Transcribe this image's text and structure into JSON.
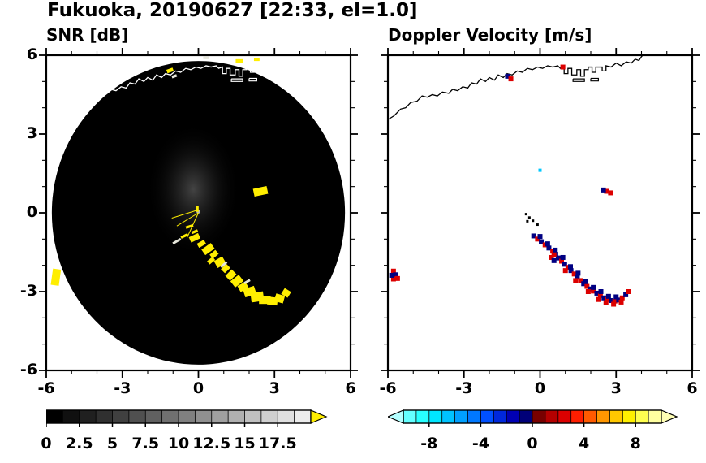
{
  "title": "Fukuoka, 20190627 [22:33, el=1.0]",
  "colors": {
    "snr_high": "#ffee00",
    "snr_dash": "#e6e6da",
    "vel_pos": "#dc0000",
    "vel_neg": "#000082",
    "vel_cyan": "#00c8ff",
    "speck_black": "#000000",
    "coast_left": "#ffffff",
    "coast_right": "#000000",
    "disk": "#000000",
    "frame": "#000000"
  },
  "chart_data": [
    {
      "type": "heatmap",
      "title": "SNR [dB]",
      "xlabel": "",
      "ylabel": "",
      "xlim": [
        -6,
        6
      ],
      "ylim": [
        -6,
        6
      ],
      "xticks": [
        -6,
        -3,
        0,
        3,
        6
      ],
      "yticks": [
        6,
        3,
        0,
        -3,
        -6
      ],
      "minor_tick_step": 1,
      "radar_disk": {
        "center": [
          0,
          0
        ],
        "radius": 5.78
      },
      "colorbar": {
        "min": 0,
        "max": 20,
        "values": [
          0,
          2.5,
          5,
          7.5,
          10,
          12.5,
          15,
          17.5
        ],
        "labels": [
          "0",
          "2.5",
          "5",
          "7.5",
          "10",
          "12.5",
          "15",
          "17.5"
        ],
        "segment_colors": [
          "#000000",
          "#101010",
          "#202020",
          "#303030",
          "#404040",
          "#505050",
          "#606060",
          "#707070",
          "#808080",
          "#909090",
          "#a0a0a0",
          "#b0b0b0",
          "#c0c0c0",
          "#d0d0d0",
          "#e0e0e0",
          "#ececec"
        ],
        "overflow_color": "#ffee00"
      },
      "echo_blobs": [
        [
          -0.15,
          -0.95,
          0.4,
          0.22,
          -25
        ],
        [
          0.12,
          -1.18,
          0.32,
          0.18,
          -30
        ],
        [
          0.38,
          -1.38,
          0.45,
          0.26,
          -35
        ],
        [
          0.62,
          -1.58,
          0.3,
          0.2,
          -40
        ],
        [
          0.5,
          -1.82,
          0.28,
          0.16,
          -40
        ],
        [
          0.85,
          -1.88,
          0.38,
          0.3,
          -30
        ],
        [
          1.07,
          -2.12,
          0.3,
          0.22,
          -45
        ],
        [
          1.28,
          -2.37,
          0.36,
          0.26,
          -45
        ],
        [
          1.52,
          -2.6,
          0.42,
          0.3,
          -38
        ],
        [
          1.76,
          -2.82,
          0.36,
          0.26,
          -28
        ],
        [
          2.02,
          -3.0,
          0.46,
          0.32,
          -18
        ],
        [
          2.32,
          -3.2,
          0.5,
          0.36,
          -8
        ],
        [
          2.62,
          -3.32,
          0.46,
          0.3,
          0
        ],
        [
          2.92,
          -3.36,
          0.4,
          0.3,
          6
        ],
        [
          3.2,
          -3.26,
          0.36,
          0.3,
          16
        ],
        [
          3.46,
          -3.05,
          0.3,
          0.26,
          32
        ],
        [
          2.45,
          0.82,
          0.55,
          0.3,
          -12
        ],
        [
          -5.62,
          -2.45,
          0.32,
          0.62,
          8
        ],
        [
          -0.35,
          -0.52,
          0.3,
          0.1,
          -18
        ],
        [
          -0.15,
          -0.72,
          0.26,
          0.1,
          -22
        ],
        [
          -0.55,
          -0.88,
          0.3,
          0.1,
          -25
        ],
        [
          -0.05,
          0.15,
          0.12,
          0.22,
          0
        ],
        [
          -1.12,
          5.42,
          0.26,
          0.14,
          -20
        ],
        [
          1.62,
          5.78,
          0.3,
          0.14,
          0
        ],
        [
          2.3,
          5.84,
          0.22,
          0.12,
          0
        ]
      ],
      "white_dashes": [
        [
          -0.85,
          -1.08,
          0.36,
          0.09,
          -30
        ],
        [
          1.0,
          -1.97,
          0.3,
          0.09,
          -40
        ],
        [
          1.92,
          -2.62,
          0.26,
          0.09,
          -30
        ],
        [
          0.3,
          5.9,
          0.22,
          0.1,
          0
        ],
        [
          -0.95,
          5.2,
          0.2,
          0.1,
          -20
        ]
      ],
      "center_rays": [
        [
          0,
          0,
          -0.85,
          -0.5
        ],
        [
          0,
          0,
          -0.45,
          -0.95
        ],
        [
          -0.05,
          0.1,
          -1.05,
          -0.2
        ]
      ]
    },
    {
      "type": "scatter",
      "title": "Doppler Velocity [m/s]",
      "xlabel": "",
      "ylabel": "",
      "xlim": [
        -6,
        6
      ],
      "ylim": [
        -6,
        6
      ],
      "xticks": [
        -6,
        -3,
        0,
        3,
        6
      ],
      "yticks": [
        6,
        3,
        0,
        -3,
        -6
      ],
      "minor_tick_step": 1,
      "colorbar": {
        "min": -10,
        "max": 10,
        "values": [
          -8,
          -4,
          0,
          4,
          8
        ],
        "labels": [
          "-8",
          "-4",
          "0",
          "4",
          "8"
        ],
        "segment_colors": [
          "#64ffff",
          "#28ffff",
          "#00e6ff",
          "#00c3ff",
          "#00a0ff",
          "#0078ff",
          "#0050ff",
          "#0028dc",
          "#0000b4",
          "#000078",
          "#780000",
          "#b40000",
          "#dc0000",
          "#ff1e00",
          "#ff5a00",
          "#ff9600",
          "#ffc800",
          "#fff000",
          "#ffff50",
          "#ffffa0"
        ],
        "underflow_color": "#b4ffff",
        "overflow_color": "#ffffb4"
      },
      "points": [
        [
          -0.25,
          -0.88,
          "n"
        ],
        [
          -0.1,
          -1.0,
          "r"
        ],
        [
          0.05,
          -1.1,
          "n"
        ],
        [
          0.2,
          -1.22,
          "r"
        ],
        [
          0.35,
          -1.34,
          "n"
        ],
        [
          0.5,
          -1.46,
          "r"
        ],
        [
          0.62,
          -1.58,
          "n"
        ],
        [
          0.45,
          -1.7,
          "r"
        ],
        [
          0.55,
          -1.82,
          "n"
        ],
        [
          0.72,
          -1.72,
          "n"
        ],
        [
          0.85,
          -1.84,
          "r"
        ],
        [
          0.97,
          -1.96,
          "n"
        ],
        [
          1.1,
          -2.08,
          "r"
        ],
        [
          1.22,
          -2.2,
          "n"
        ],
        [
          1.35,
          -2.33,
          "r"
        ],
        [
          1.47,
          -2.45,
          "n"
        ],
        [
          1.6,
          -2.58,
          "r"
        ],
        [
          1.72,
          -2.7,
          "n"
        ],
        [
          1.85,
          -2.8,
          "r"
        ],
        [
          1.98,
          -2.9,
          "n"
        ],
        [
          2.1,
          -2.98,
          "r"
        ],
        [
          2.24,
          -3.06,
          "n"
        ],
        [
          2.38,
          -3.15,
          "r"
        ],
        [
          2.52,
          -3.24,
          "n"
        ],
        [
          2.66,
          -3.3,
          "r"
        ],
        [
          2.8,
          -3.34,
          "n"
        ],
        [
          2.95,
          -3.36,
          "r"
        ],
        [
          3.1,
          -3.32,
          "n"
        ],
        [
          3.24,
          -3.24,
          "r"
        ],
        [
          3.38,
          -3.12,
          "n"
        ],
        [
          3.48,
          -3.0,
          "r"
        ],
        [
          0.0,
          -0.9,
          "n"
        ],
        [
          0.3,
          -1.18,
          "n"
        ],
        [
          0.6,
          -1.42,
          "n"
        ],
        [
          0.9,
          -1.7,
          "n"
        ],
        [
          1.2,
          -2.05,
          "n"
        ],
        [
          1.5,
          -2.3,
          "n"
        ],
        [
          1.8,
          -2.62,
          "n"
        ],
        [
          2.1,
          -2.84,
          "n"
        ],
        [
          2.4,
          -3.0,
          "n"
        ],
        [
          2.7,
          -3.18,
          "n"
        ],
        [
          3.0,
          -3.2,
          "n"
        ],
        [
          0.55,
          -1.6,
          "r"
        ],
        [
          1.0,
          -2.2,
          "r"
        ],
        [
          1.4,
          -2.58,
          "r"
        ],
        [
          1.9,
          -3.0,
          "r"
        ],
        [
          2.3,
          -3.3,
          "r"
        ],
        [
          2.6,
          -3.42,
          "r"
        ],
        [
          2.9,
          -3.48,
          "r"
        ],
        [
          3.2,
          -3.4,
          "r"
        ],
        [
          2.62,
          0.82,
          "r"
        ],
        [
          2.78,
          0.76,
          "r"
        ],
        [
          2.5,
          0.87,
          "n"
        ],
        [
          -5.78,
          -2.22,
          "r"
        ],
        [
          -5.7,
          -2.36,
          "n"
        ],
        [
          -5.62,
          -2.5,
          "r"
        ],
        [
          -5.78,
          -2.52,
          "r"
        ],
        [
          -5.85,
          -2.38,
          "n"
        ],
        [
          -1.28,
          5.2,
          "n"
        ],
        [
          -1.15,
          5.1,
          "r"
        ],
        [
          0.9,
          5.55,
          "r"
        ],
        [
          -0.55,
          -0.05,
          "k"
        ],
        [
          -0.42,
          -0.18,
          "k"
        ],
        [
          -0.28,
          -0.3,
          "k"
        ],
        [
          -0.5,
          -0.32,
          "k"
        ],
        [
          -0.1,
          -0.45,
          "k"
        ],
        [
          0.0,
          1.62,
          "c"
        ]
      ]
    }
  ],
  "coastline": {
    "main": [
      [
        -6.0,
        3.55
      ],
      [
        -5.75,
        3.7
      ],
      [
        -5.5,
        3.95
      ],
      [
        -5.3,
        4.0
      ],
      [
        -5.1,
        4.2
      ],
      [
        -4.85,
        4.25
      ],
      [
        -4.65,
        4.45
      ],
      [
        -4.45,
        4.4
      ],
      [
        -4.25,
        4.5
      ],
      [
        -4.05,
        4.45
      ],
      [
        -3.85,
        4.6
      ],
      [
        -3.6,
        4.55
      ],
      [
        -3.45,
        4.7
      ],
      [
        -3.25,
        4.65
      ],
      [
        -3.05,
        4.8
      ],
      [
        -2.85,
        4.75
      ],
      [
        -2.7,
        4.95
      ],
      [
        -2.5,
        4.9
      ],
      [
        -2.35,
        5.1
      ],
      [
        -2.15,
        5.0
      ],
      [
        -2.0,
        5.15
      ],
      [
        -1.8,
        5.05
      ],
      [
        -1.65,
        5.25
      ],
      [
        -1.45,
        5.15
      ],
      [
        -1.3,
        5.3
      ],
      [
        -1.1,
        5.25
      ],
      [
        -0.9,
        5.4
      ],
      [
        -0.7,
        5.35
      ],
      [
        -0.5,
        5.5
      ],
      [
        -0.3,
        5.45
      ],
      [
        -0.1,
        5.55
      ],
      [
        0.1,
        5.5
      ],
      [
        0.3,
        5.6
      ],
      [
        0.5,
        5.55
      ],
      [
        0.7,
        5.6
      ],
      [
        0.8,
        5.5
      ],
      [
        0.95,
        5.55
      ],
      [
        0.95,
        5.3
      ],
      [
        1.1,
        5.3
      ],
      [
        1.1,
        5.5
      ],
      [
        1.25,
        5.5
      ],
      [
        1.25,
        5.25
      ],
      [
        1.45,
        5.25
      ],
      [
        1.45,
        5.45
      ],
      [
        1.6,
        5.45
      ],
      [
        1.6,
        5.2
      ],
      [
        1.75,
        5.2
      ],
      [
        1.75,
        5.45
      ],
      [
        1.9,
        5.45
      ],
      [
        1.9,
        5.55
      ],
      [
        2.05,
        5.55
      ],
      [
        2.05,
        5.35
      ],
      [
        2.2,
        5.35
      ],
      [
        2.2,
        5.55
      ],
      [
        2.45,
        5.55
      ],
      [
        2.45,
        5.4
      ],
      [
        2.6,
        5.4
      ],
      [
        2.6,
        5.6
      ],
      [
        2.8,
        5.55
      ],
      [
        3.0,
        5.7
      ],
      [
        3.2,
        5.6
      ],
      [
        3.4,
        5.75
      ],
      [
        3.6,
        5.7
      ],
      [
        3.75,
        5.85
      ],
      [
        3.9,
        5.8
      ],
      [
        4.0,
        5.95
      ],
      [
        4.1,
        6.05
      ]
    ],
    "harbor": [
      [
        [
          1.3,
          5.1
        ],
        [
          1.75,
          5.1
        ],
        [
          1.75,
          5.0
        ],
        [
          1.3,
          5.0
        ],
        [
          1.3,
          5.1
        ]
      ],
      [
        [
          2.0,
          5.12
        ],
        [
          2.3,
          5.12
        ],
        [
          2.3,
          5.02
        ],
        [
          2.0,
          5.02
        ],
        [
          2.0,
          5.12
        ]
      ]
    ]
  }
}
